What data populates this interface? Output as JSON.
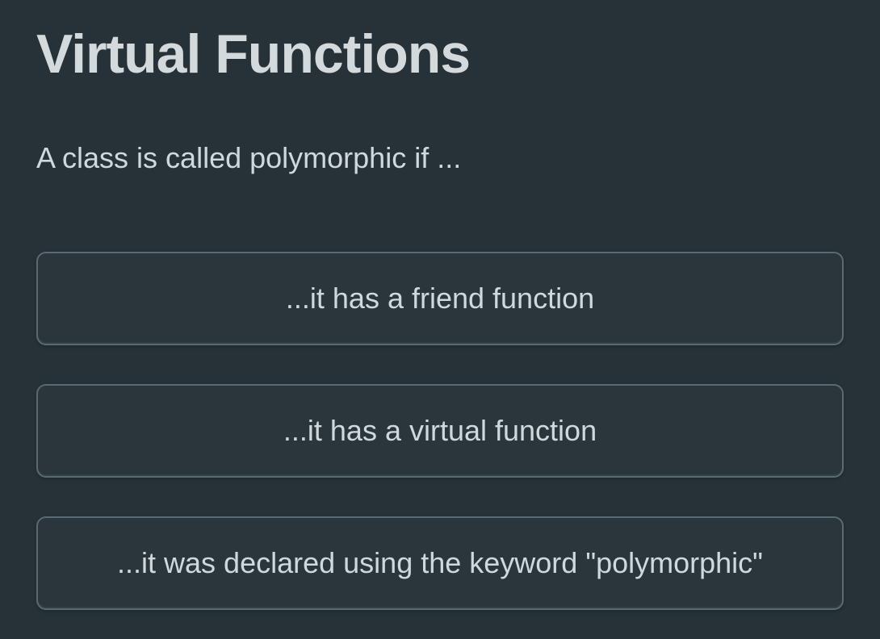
{
  "title": "Virtual Functions",
  "question": "A class is called polymorphic if ...",
  "options": [
    {
      "label": "...it has a friend function"
    },
    {
      "label": "...it has a virtual function"
    },
    {
      "label": "...it was declared using the keyword \"polymorphic\""
    }
  ],
  "colors": {
    "background": "#263238",
    "text": "#cfd8dc",
    "title": "#d4d9dc",
    "button_bg": "#2b363c",
    "button_border": "#5a6a72"
  },
  "typography": {
    "title_fontsize": 68,
    "title_fontweight": 700,
    "question_fontsize": 36,
    "option_fontsize": 36
  }
}
